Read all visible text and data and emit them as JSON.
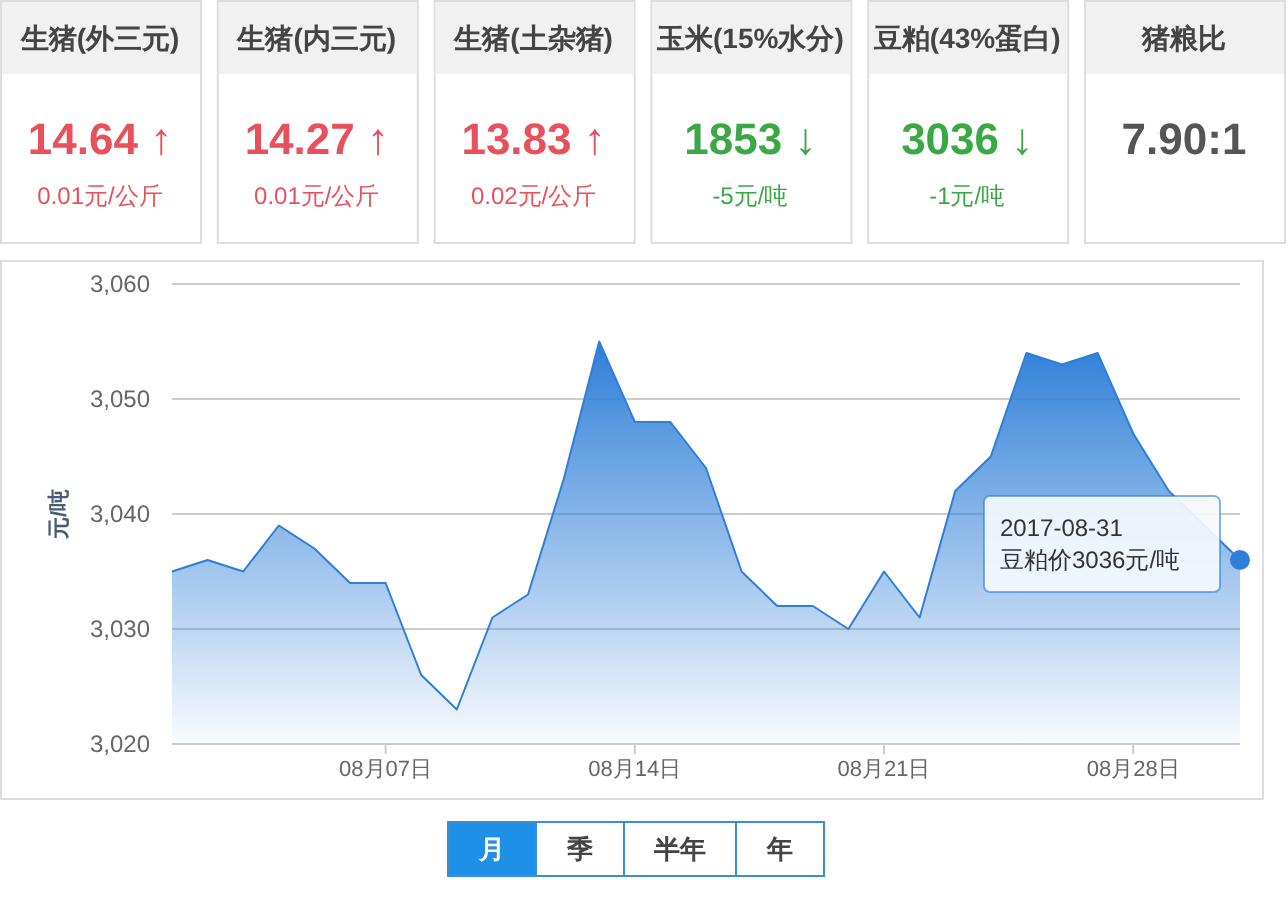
{
  "chart_data": [
    {
      "type": "other",
      "categories": [
        "生猪(外三元)",
        "生猪(内三元)",
        "生猪(土杂猪)",
        "玉米(15%水分)",
        "豆粕(43%蛋白)",
        "猪粮比"
      ],
      "annotations": [
        "14.64 ↑",
        "14.27 ↑",
        "13.83 ↑",
        "1853 ↓",
        "3036 ↓",
        "7.90:1",
        "0.01元/公斤",
        "0.01元/公斤",
        "0.02元/公斤",
        "-5元/吨",
        "-1元/吨"
      ]
    },
    {
      "type": "area",
      "ylabel": "元/吨",
      "color": "#2f7fd8",
      "grid": "y",
      "marker": "none",
      "x": [
        "2017-08-01",
        "2017-08-02",
        "2017-08-03",
        "2017-08-04",
        "2017-08-05",
        "2017-08-06",
        "2017-08-07",
        "2017-08-08",
        "2017-08-09",
        "2017-08-10",
        "2017-08-11",
        "2017-08-12",
        "2017-08-13",
        "2017-08-14",
        "2017-08-15",
        "2017-08-16",
        "2017-08-17",
        "2017-08-18",
        "2017-08-19",
        "2017-08-20",
        "2017-08-21",
        "2017-08-22",
        "2017-08-23",
        "2017-08-24",
        "2017-08-25",
        "2017-08-26",
        "2017-08-27",
        "2017-08-28",
        "2017-08-29",
        "2017-08-30",
        "2017-08-31"
      ],
      "values": [
        3035,
        3036,
        3035,
        3039,
        3037,
        3034,
        3034,
        3026,
        3023,
        3031,
        3033,
        3043,
        3055,
        3048,
        3048,
        3044,
        3035,
        3032,
        3032,
        3030,
        3035,
        3031,
        3042,
        3045,
        3054,
        3053,
        3054,
        3047,
        3042,
        null,
        3036
      ],
      "xlim": [
        "2017-08-01",
        "2017-08-31"
      ],
      "xticks": [
        {
          "value": "2017-08-07",
          "label": "08月07日"
        },
        {
          "value": "2017-08-14",
          "label": "08月14日"
        },
        {
          "value": "2017-08-21",
          "label": "08月21日"
        },
        {
          "value": "2017-08-28",
          "label": "08月28日"
        }
      ],
      "ylim": [
        3020,
        3060
      ],
      "yticks": [
        {
          "value": 3020,
          "label": "3,020"
        },
        {
          "value": 3030,
          "label": "3,030"
        },
        {
          "value": 3040,
          "label": "3,040"
        },
        {
          "value": 3050,
          "label": "3,050"
        },
        {
          "value": 3060,
          "label": "3,060"
        }
      ],
      "annotations": [
        {
          "text": "2017-08-31\n豆粕价3036元/吨",
          "x": "2017-08-31",
          "y": 3036
        }
      ]
    },
    {
      "type": "other",
      "categories": [
        "月",
        "季",
        "半年",
        "年"
      ]
    }
  ]
}
